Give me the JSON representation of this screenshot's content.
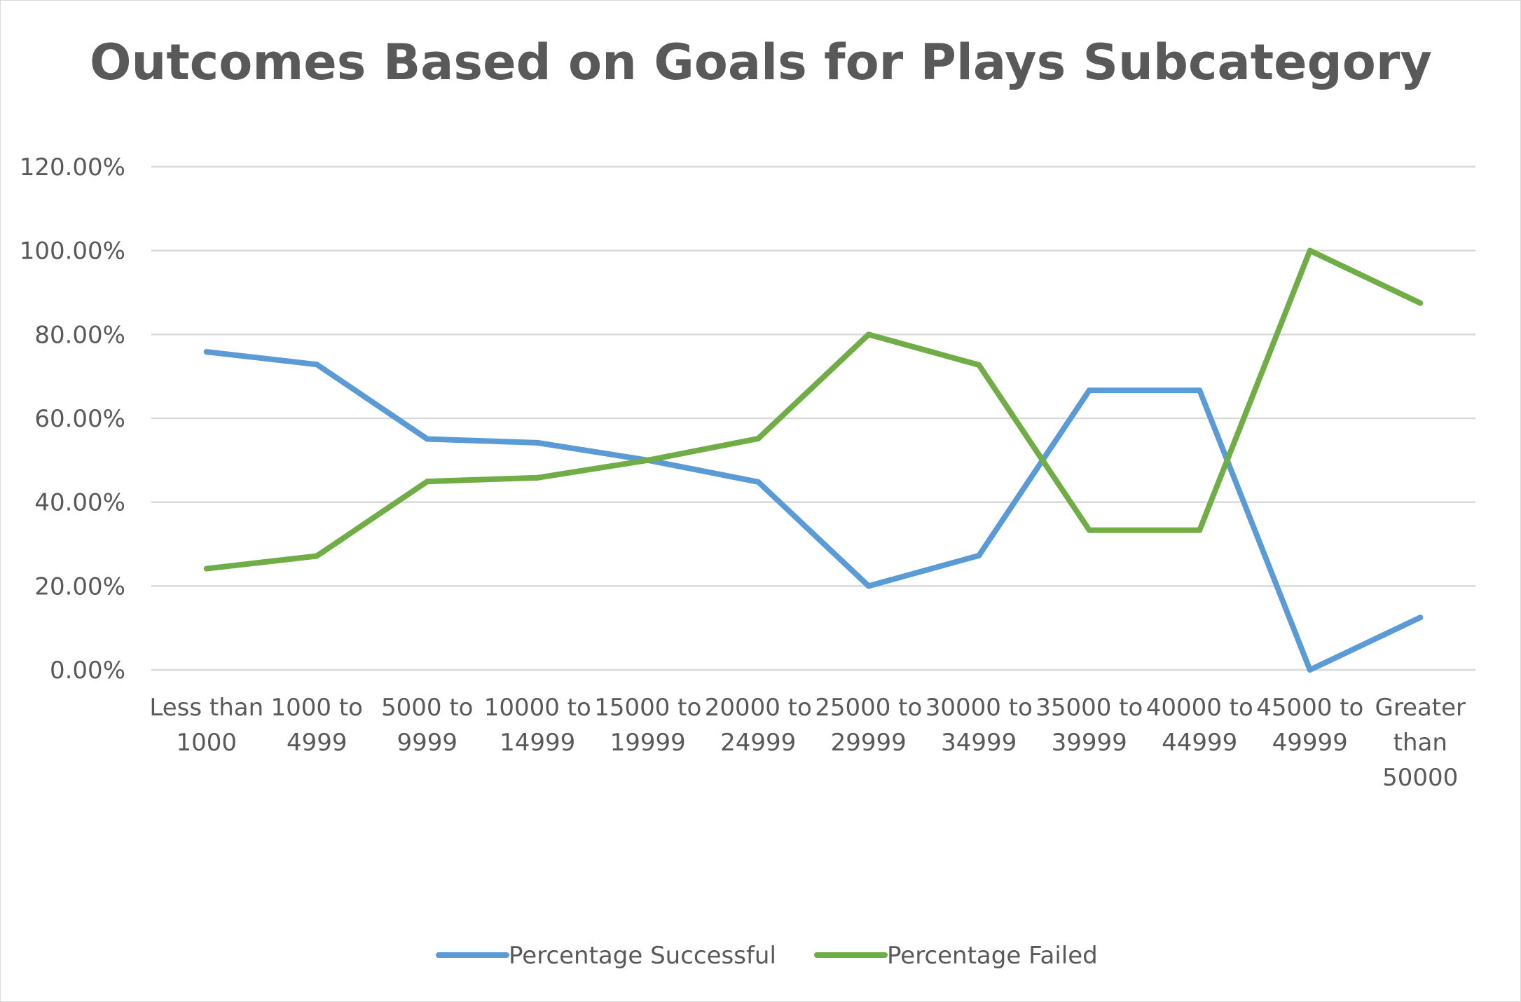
{
  "chart_data": {
    "type": "line",
    "title": "Outcomes Based on Goals for Plays Subcategory",
    "xlabel": "",
    "ylabel": "",
    "categories": [
      [
        "Less than",
        "1000"
      ],
      [
        "1000 to",
        "4999"
      ],
      [
        "5000 to",
        "9999"
      ],
      [
        "10000 to",
        "14999"
      ],
      [
        "15000 to",
        "19999"
      ],
      [
        "20000 to",
        "24999"
      ],
      [
        "25000 to",
        "29999"
      ],
      [
        "30000 to",
        "34999"
      ],
      [
        "35000 to",
        "39999"
      ],
      [
        "40000 to",
        "44999"
      ],
      [
        "45000 to",
        "49999"
      ],
      [
        "Greater",
        "than",
        "50000"
      ]
    ],
    "series": [
      {
        "name": "Percentage Successful",
        "color": "#5B9BD5",
        "values": [
          75.86,
          72.84,
          55.07,
          54.17,
          50.0,
          44.83,
          20.0,
          27.27,
          66.67,
          66.67,
          0.0,
          12.5
        ]
      },
      {
        "name": "Percentage Failed",
        "color": "#70AD47",
        "values": [
          24.14,
          27.16,
          44.93,
          45.83,
          50.0,
          55.17,
          80.0,
          72.73,
          33.33,
          33.33,
          100.0,
          87.5
        ]
      }
    ],
    "ylim": [
      0,
      120
    ],
    "yticks": [
      "0.00%",
      "20.00%",
      "40.00%",
      "60.00%",
      "80.00%",
      "100.00%",
      "120.00%"
    ],
    "grid": true,
    "legend": "bottom"
  }
}
